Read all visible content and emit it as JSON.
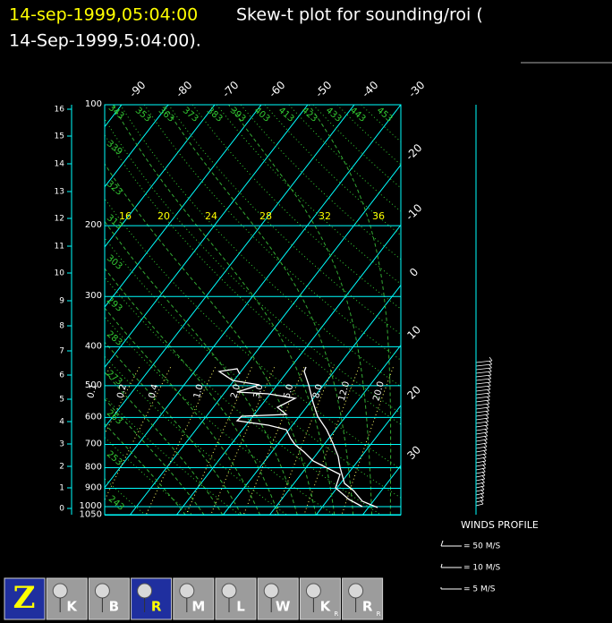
{
  "header": {
    "timestamp": "14-sep-1999,05:04:00",
    "title_line1": "Skew-t plot for sounding/roi (",
    "title_line2": "14-Sep-1999,5:04:00)."
  },
  "pressure_labels": [
    100,
    200,
    300,
    400,
    500,
    600,
    700,
    800,
    900,
    1000,
    1050
  ],
  "height_km_labels": [
    16,
    15,
    14,
    13,
    12,
    11,
    10,
    9,
    8,
    7,
    6,
    5,
    4,
    3,
    2,
    1,
    0
  ],
  "temperature_top_labels": [
    -90,
    -80,
    -70,
    -60,
    -50,
    -40,
    -30
  ],
  "temperature_right_labels": [
    -20,
    -10,
    0,
    10,
    20,
    30
  ],
  "theta_labels": [
    243,
    253,
    263,
    273,
    283,
    293,
    303,
    313,
    323,
    339,
    343,
    353,
    363,
    373,
    383,
    393,
    403,
    413,
    423,
    433,
    443,
    453
  ],
  "moist_labels": [
    16,
    20,
    24,
    28,
    32,
    36
  ],
  "mixing_ratio_labels": [
    "0.1",
    "0.2",
    "0.4",
    "1.0",
    "2.0",
    "3.0",
    "5.0",
    "8.0",
    "12.0",
    "20.0"
  ],
  "wind_legend": {
    "title": "WINDS PROFILE",
    "items": [
      "= 50 M/S",
      "= 10 M/S",
      "= 5 M/S"
    ]
  },
  "toolbar": [
    {
      "label": "Z"
    },
    {
      "label": "K"
    },
    {
      "label": "B"
    },
    {
      "label": "R"
    },
    {
      "label": "M"
    },
    {
      "label": "L"
    },
    {
      "label": "W"
    },
    {
      "label": "K",
      "sub": "R"
    },
    {
      "label": "R",
      "sub": "R"
    }
  ]
}
